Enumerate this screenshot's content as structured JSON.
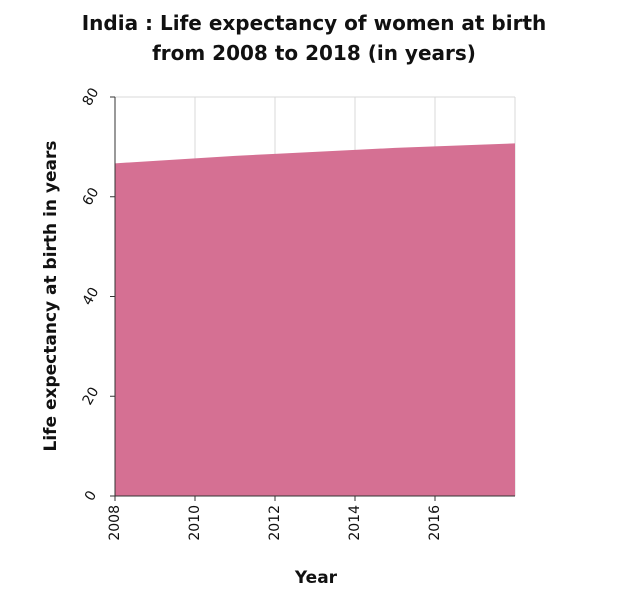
{
  "chart_data": {
    "type": "area",
    "title": [
      "India : Life expectancy of women at birth",
      "from 2008 to 2018 (in years)"
    ],
    "xlabel": "Year",
    "ylabel": "Life expectancy at birth in years",
    "x": [
      2008,
      2009,
      2010,
      2011,
      2012,
      2013,
      2014,
      2015,
      2016,
      2017,
      2018
    ],
    "series": [
      {
        "values": [
          66.7,
          67.2,
          67.7,
          68.2,
          68.6,
          69.0,
          69.4,
          69.8,
          70.1,
          70.4,
          70.7
        ],
        "color": "#d57093"
      }
    ],
    "xlim": [
      2008,
      2018
    ],
    "ylim": [
      0,
      80
    ],
    "x_ticks": [
      2008,
      2010,
      2012,
      2014,
      2016
    ],
    "x_tick_labels": [
      "2008",
      "2010",
      "2012",
      "2014",
      "2016"
    ],
    "y_ticks": [
      0,
      20,
      40,
      60,
      80
    ],
    "y_tick_labels": [
      "0",
      "20",
      "40",
      "60",
      "80"
    ],
    "grid": true,
    "legend": "none"
  }
}
